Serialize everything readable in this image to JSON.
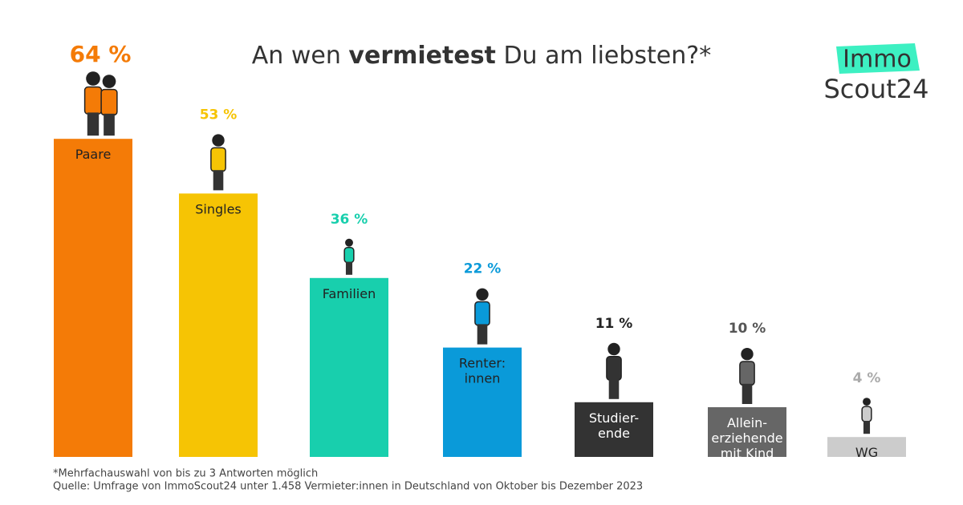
{
  "chart_data": {
    "type": "bar",
    "title": [
      "An wen",
      "vermietest",
      "Du am liebsten?*"
    ],
    "categories": [
      "Paare",
      "Singles",
      "Familien",
      "Renter:\ninnen",
      "Studier-\nende",
      "Allein-\nerziehende\nmit Kind",
      "WG"
    ],
    "values": [
      64,
      53,
      36,
      22,
      11,
      10,
      4
    ],
    "value_labels": [
      "64 %",
      "53 %",
      "36 %",
      "22 %",
      "11 %",
      "10 %",
      "4 %"
    ],
    "colors": [
      "#f47b07",
      "#f6c404",
      "#18cfad",
      "#0a9ad9",
      "#333333",
      "#666666",
      "#cccccc"
    ],
    "value_label_colors": [
      "#f47b07",
      "#f6c404",
      "#18cfad",
      "#0a9ad9",
      "#222222",
      "#555555",
      "#aaaaaa"
    ],
    "category_text_colors": [
      "#222222",
      "#222222",
      "#222222",
      "#222222",
      "#ffffff",
      "#ffffff",
      "#222222"
    ],
    "footnote": "*Mehrfachauswahl von bis zu 3 Antworten möglich",
    "source": "Quelle: Umfrage von ImmoScout24 unter 1.458 Vermieter:innen in Deutschland von Oktober bis Dezember 2023",
    "logo": {
      "top": "Immo",
      "bottom": "Scout24"
    }
  }
}
